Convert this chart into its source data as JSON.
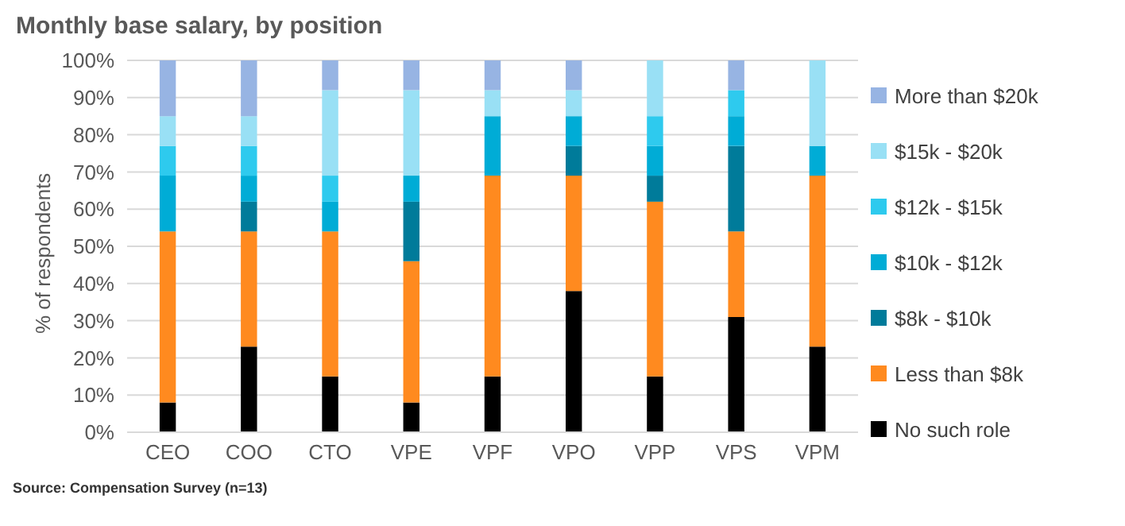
{
  "chart_data": {
    "type": "bar",
    "title": "Monthly base salary, by position",
    "ylabel": "% of respondents",
    "annotations": [
      "Source: Compensation Survey (n=13)"
    ],
    "categories": [
      "CEO",
      "COO",
      "CTO",
      "VPE",
      "VPF",
      "VPO",
      "VPP",
      "VPS",
      "VPM"
    ],
    "stacked": true,
    "series": [
      {
        "name": "No such role",
        "color": "#000000",
        "values": [
          8,
          23,
          15,
          8,
          15,
          38,
          15,
          31,
          23
        ]
      },
      {
        "name": "Less than $8k",
        "color": "#ff8a1f",
        "values": [
          46,
          31,
          39,
          38,
          54,
          31,
          47,
          23,
          46
        ]
      },
      {
        "name": "$8k - $10k",
        "color": "#007b9a",
        "values": [
          0,
          8,
          0,
          16,
          0,
          8,
          7,
          23,
          0
        ]
      },
      {
        "name": "$10k - $12k",
        "color": "#00acd6",
        "values": [
          15,
          7,
          8,
          7,
          16,
          8,
          8,
          8,
          8
        ]
      },
      {
        "name": "$12k - $15k",
        "color": "#2ecaee",
        "values": [
          8,
          8,
          7,
          0,
          0,
          0,
          8,
          7,
          0
        ]
      },
      {
        "name": "$15k - $20k",
        "color": "#99e0f5",
        "values": [
          8,
          8,
          23,
          23,
          7,
          7,
          15,
          0,
          23
        ]
      },
      {
        "name": "More than $20k",
        "color": "#97b4e3",
        "values": [
          15,
          15,
          8,
          8,
          8,
          8,
          0,
          8,
          0
        ]
      }
    ],
    "ylim": [
      0,
      100
    ],
    "yticks": [
      {
        "value": 0,
        "label": "0%"
      },
      {
        "value": 10,
        "label": "10%"
      },
      {
        "value": 20,
        "label": "20%"
      },
      {
        "value": 30,
        "label": "30%"
      },
      {
        "value": 40,
        "label": "40%"
      },
      {
        "value": 50,
        "label": "50%"
      },
      {
        "value": 60,
        "label": "60%"
      },
      {
        "value": 70,
        "label": "70%"
      },
      {
        "value": 80,
        "label": "80%"
      },
      {
        "value": 90,
        "label": "90%"
      },
      {
        "value": 100,
        "label": "100%"
      }
    ],
    "grid": "y",
    "legend": "right"
  }
}
